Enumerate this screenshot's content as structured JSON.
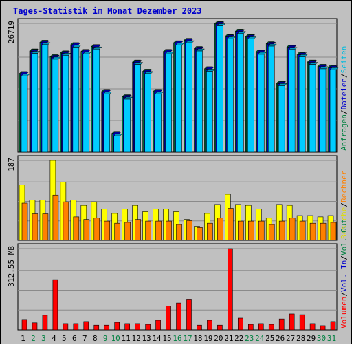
{
  "title": "Tages-Statistik im Monat Dezember 2023",
  "chart_data": [
    {
      "type": "bar",
      "name": "hits-pages-chart",
      "ymax_label": "26719",
      "ylim": [
        0,
        26719
      ],
      "right_legend": [
        {
          "text": "Anfragen",
          "color": "#008040"
        },
        {
          "text": "/",
          "color": "#000000"
        },
        {
          "text": "Dateien",
          "color": "#0000cc"
        },
        {
          "text": "/",
          "color": "#000000"
        },
        {
          "text": "Seiten",
          "color": "#00bbdd"
        }
      ],
      "categories": [
        "1",
        "2",
        "3",
        "4",
        "5",
        "6",
        "7",
        "8",
        "9",
        "10",
        "11",
        "12",
        "13",
        "14",
        "15",
        "16",
        "17",
        "18",
        "19",
        "20",
        "21",
        "22",
        "23",
        "24",
        "25",
        "26",
        "27",
        "28",
        "29",
        "30",
        "31"
      ],
      "series": [
        {
          "name": "Anfragen",
          "color": "#008040",
          "values": [
            16300,
            21000,
            22800,
            19800,
            20600,
            22300,
            20900,
            21900,
            12600,
            3900,
            11500,
            18700,
            16800,
            12600,
            20900,
            22700,
            23200,
            21500,
            17300,
            26700,
            24000,
            25100,
            24000,
            20800,
            22500,
            14300,
            21800,
            20300,
            18700,
            17800,
            17600
          ]
        },
        {
          "name": "Dateien",
          "color": "#0000cc",
          "values": [
            16200,
            20900,
            22700,
            19700,
            20500,
            22200,
            20800,
            21800,
            12500,
            3800,
            11400,
            18600,
            16700,
            12500,
            20800,
            22600,
            23100,
            21400,
            17200,
            26600,
            23900,
            25000,
            23900,
            20700,
            22400,
            14200,
            21700,
            20200,
            18600,
            17700,
            17500
          ]
        },
        {
          "name": "Seiten",
          "color": "#00ccff",
          "values": [
            15800,
            20500,
            22300,
            19300,
            20100,
            21800,
            20400,
            21400,
            12100,
            3400,
            11000,
            18200,
            16300,
            12100,
            20400,
            22200,
            22700,
            21000,
            16800,
            26200,
            23500,
            24600,
            23500,
            20300,
            22000,
            13800,
            21300,
            19800,
            18200,
            17300,
            17100
          ]
        }
      ]
    },
    {
      "type": "bar",
      "name": "visits-chart",
      "ymax_label": "187",
      "ylim": [
        0,
        187
      ],
      "right_legend": [
        {
          "text": "Besuche",
          "color": "#dddd00"
        },
        {
          "text": "/",
          "color": "#000000"
        },
        {
          "text": "Rechner",
          "color": "#ff8000"
        }
      ],
      "categories": [
        "1",
        "2",
        "3",
        "4",
        "5",
        "6",
        "7",
        "8",
        "9",
        "10",
        "11",
        "12",
        "13",
        "14",
        "15",
        "16",
        "17",
        "18",
        "19",
        "20",
        "21",
        "22",
        "23",
        "24",
        "25",
        "26",
        "27",
        "28",
        "29",
        "30",
        "31"
      ],
      "series": [
        {
          "name": "Besuche",
          "color": "#ffff00",
          "values": [
            130,
            94,
            94,
            187,
            136,
            94,
            82,
            90,
            73,
            63,
            73,
            82,
            67,
            73,
            73,
            67,
            49,
            33,
            63,
            84,
            108,
            84,
            82,
            73,
            52,
            84,
            82,
            58,
            58,
            55,
            58
          ]
        },
        {
          "name": "Rechner",
          "color": "#ff8000",
          "values": [
            87,
            62,
            62,
            106,
            90,
            55,
            49,
            52,
            45,
            40,
            42,
            49,
            45,
            45,
            45,
            37,
            46,
            30,
            40,
            52,
            75,
            45,
            45,
            45,
            37,
            45,
            52,
            45,
            40,
            40,
            42
          ]
        }
      ]
    },
    {
      "type": "bar",
      "name": "volume-chart",
      "ymax_label": "312.55 MB",
      "ylim": [
        0,
        312.55
      ],
      "right_legend": [
        {
          "text": "Volumen",
          "color": "#ff0000"
        },
        {
          "text": "/",
          "color": "#000000"
        },
        {
          "text": "Vol. In",
          "color": "#0000cc"
        },
        {
          "text": "/",
          "color": "#000000"
        },
        {
          "text": "Vol. Out",
          "color": "#008040"
        }
      ],
      "categories": [
        "1",
        "2",
        "3",
        "4",
        "5",
        "6",
        "7",
        "8",
        "9",
        "10",
        "11",
        "12",
        "13",
        "14",
        "15",
        "16",
        "17",
        "18",
        "19",
        "20",
        "21",
        "22",
        "23",
        "24",
        "25",
        "26",
        "27",
        "28",
        "29",
        "30",
        "31"
      ],
      "series": [
        {
          "name": "Volumen",
          "color": "#ff0000",
          "values": [
            40,
            27,
            56,
            193,
            24,
            24,
            32,
            18,
            18,
            29,
            24,
            24,
            21,
            37,
            91,
            103,
            118,
            18,
            37,
            18,
            312.55,
            45,
            21,
            24,
            21,
            42,
            61,
            58,
            24,
            16,
            32
          ]
        }
      ]
    }
  ],
  "x_axis": {
    "labels": [
      "1",
      "2",
      "3",
      "4",
      "5",
      "6",
      "7",
      "8",
      "9",
      "10",
      "11",
      "12",
      "13",
      "14",
      "15",
      "16",
      "17",
      "18",
      "19",
      "20",
      "21",
      "22",
      "23",
      "24",
      "25",
      "26",
      "27",
      "28",
      "29",
      "30",
      "31"
    ],
    "weekend_color": "#008040",
    "weekday_color": "#000000",
    "weekend_days": [
      2,
      3,
      9,
      10,
      16,
      17,
      23,
      24,
      30,
      31
    ]
  }
}
